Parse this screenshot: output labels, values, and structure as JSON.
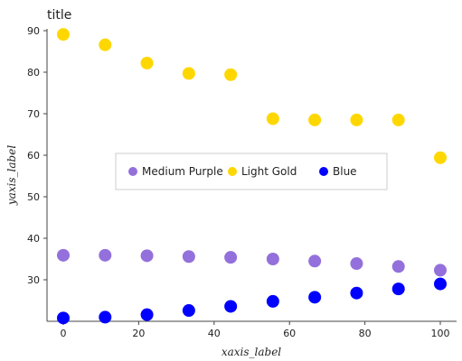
{
  "chart_data": {
    "type": "scatter",
    "title": "title",
    "xlabel": "xaxis_label",
    "ylabel": "yaxis_label",
    "xlim": [
      0,
      100
    ],
    "ylim": [
      20,
      90
    ],
    "x_ticks": [
      0,
      20,
      40,
      60,
      80,
      100
    ],
    "y_ticks": [
      30,
      40,
      50,
      60,
      70,
      80,
      90
    ],
    "x_tick_labels": [
      "0",
      "20",
      "40",
      "60",
      "80",
      "100"
    ],
    "y_tick_labels": [
      "30",
      "40",
      "50",
      "60",
      "70",
      "80",
      "90"
    ],
    "grid": false,
    "legend_position": "center",
    "series": [
      {
        "name": "Medium Purple",
        "color": "#9370db",
        "x": [
          0,
          11.1,
          22.2,
          33.3,
          44.4,
          55.6,
          66.7,
          77.8,
          88.9,
          100
        ],
        "y": [
          35.9,
          35.9,
          35.8,
          35.6,
          35.4,
          35.0,
          34.5,
          33.9,
          33.2,
          32.3
        ]
      },
      {
        "name": "Light Gold",
        "color": "#ffd700",
        "x": [
          0,
          11.1,
          22.2,
          33.3,
          44.4,
          55.6,
          66.7,
          77.8,
          88.9,
          100
        ],
        "y": [
          89.1,
          86.6,
          82.2,
          79.7,
          79.4,
          68.8,
          68.5,
          68.5,
          68.5,
          59.4
        ]
      },
      {
        "name": "Blue",
        "color": "#0000ff",
        "x": [
          0,
          11.1,
          22.2,
          33.3,
          44.4,
          55.6,
          66.7,
          77.8,
          88.9,
          100
        ],
        "y": [
          20.8,
          21.0,
          21.6,
          22.6,
          23.6,
          24.8,
          25.8,
          26.8,
          27.8,
          29.0
        ]
      }
    ]
  }
}
